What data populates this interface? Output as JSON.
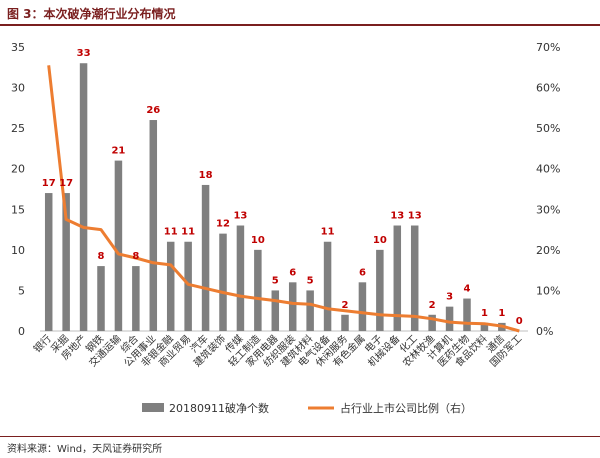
{
  "figure": {
    "title": "图 3：本次破净潮行业分布情况",
    "source": "资料来源：Wind，天风证券研究所"
  },
  "colors": {
    "bar": "#7f7f7f",
    "line": "#ed7d31",
    "label": "#c00000",
    "axis_text": "#333333",
    "title": "#7a1f1f"
  },
  "chart_data": {
    "type": "bar",
    "categories": [
      "银行",
      "采掘",
      "房地产",
      "钢铁",
      "交通运输",
      "综合",
      "公用事业",
      "非银金融",
      "商业贸易",
      "汽车",
      "建筑装饰",
      "传媒",
      "轻工制造",
      "家用电器",
      "纺织服装",
      "建筑材料",
      "电气设备",
      "休闲服务",
      "有色金属",
      "电子",
      "机械设备",
      "化工",
      "农林牧渔",
      "计算机",
      "医药生物",
      "食品饮料",
      "通信",
      "国防军工"
    ],
    "series": [
      {
        "name": "20180911破净个数",
        "type": "bar",
        "axis": "left",
        "values": [
          17,
          17,
          33,
          8,
          21,
          8,
          26,
          11,
          11,
          18,
          12,
          13,
          10,
          5,
          6,
          5,
          11,
          2,
          6,
          10,
          13,
          13,
          2,
          3,
          4,
          1,
          1,
          0
        ]
      },
      {
        "name": "占行业上市公司比例（右）",
        "type": "line",
        "axis": "right",
        "values": [
          0.655,
          0.275,
          0.255,
          0.25,
          0.19,
          0.18,
          0.168,
          0.163,
          0.115,
          0.105,
          0.095,
          0.086,
          0.08,
          0.075,
          0.068,
          0.066,
          0.055,
          0.05,
          0.045,
          0.04,
          0.038,
          0.036,
          0.03,
          0.022,
          0.019,
          0.018,
          0.012,
          0.0
        ]
      }
    ],
    "y_left": {
      "min": 0,
      "max": 35,
      "ticks": [
        "0",
        "5",
        "10",
        "15",
        "20",
        "25",
        "30",
        "35"
      ]
    },
    "y_right": {
      "min": 0,
      "max": 0.7,
      "ticks": [
        "0%",
        "10%",
        "20%",
        "30%",
        "40%",
        "50%",
        "60%",
        "70%"
      ]
    },
    "data_labels": [
      "17",
      "17",
      "33",
      "8",
      "21",
      "8",
      "26",
      "11",
      "11",
      "18",
      "12",
      "13",
      "10",
      "5",
      "6",
      "5",
      "11",
      "2",
      "6",
      "10",
      "13",
      "13",
      "2",
      "3",
      "4",
      "1",
      "1",
      "0"
    ],
    "legend_position": "bottom",
    "grid": false
  }
}
